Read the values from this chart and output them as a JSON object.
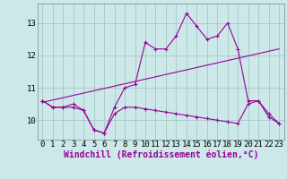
{
  "xlabel": "Windchill (Refroidissement éolien,°C)",
  "bg_color": "#cce8e8",
  "grid_color": "#aacccc",
  "line_color": "#990099",
  "x": [
    0,
    1,
    2,
    3,
    4,
    5,
    6,
    7,
    8,
    9,
    10,
    11,
    12,
    13,
    14,
    15,
    16,
    17,
    18,
    19,
    20,
    21,
    22,
    23
  ],
  "line1": [
    10.6,
    10.4,
    10.4,
    10.4,
    10.3,
    9.7,
    9.6,
    10.4,
    11.0,
    11.1,
    12.4,
    12.2,
    12.2,
    12.6,
    13.3,
    12.9,
    12.5,
    12.6,
    13.0,
    12.2,
    10.6,
    10.6,
    10.2,
    9.9
  ],
  "line2": [
    10.6,
    10.4,
    10.4,
    10.5,
    10.3,
    9.7,
    9.6,
    10.2,
    10.4,
    10.4,
    10.35,
    10.3,
    10.25,
    10.2,
    10.15,
    10.1,
    10.05,
    10.0,
    9.95,
    9.9,
    10.5,
    10.6,
    10.1,
    9.9
  ],
  "line3_x": [
    0,
    23
  ],
  "line3_y": [
    10.55,
    12.2
  ],
  "ylim": [
    9.4,
    13.6
  ],
  "xlim": [
    -0.5,
    23.5
  ],
  "tick_fontsize": 6.5,
  "xlabel_fontsize": 7.0
}
